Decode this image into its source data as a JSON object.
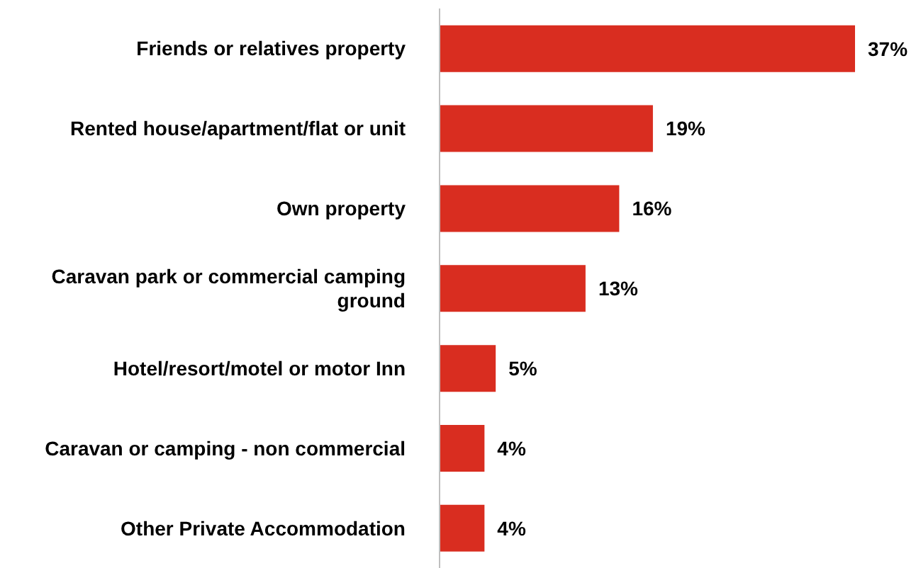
{
  "chart_data": {
    "type": "bar",
    "orientation": "horizontal",
    "categories": [
      "Friends or relatives property",
      "Rented house/apartment/flat or unit",
      "Own property",
      "Caravan park or commercial camping ground",
      "Hotel/resort/motel or motor Inn",
      "Caravan or camping - non commercial",
      "Other Private Accommodation"
    ],
    "values": [
      37,
      19,
      16,
      13,
      5,
      4,
      4
    ],
    "value_labels": [
      "37%",
      "19%",
      "16%",
      "13%",
      "5%",
      "4%",
      "4%"
    ],
    "color": "#d92d20"
  }
}
